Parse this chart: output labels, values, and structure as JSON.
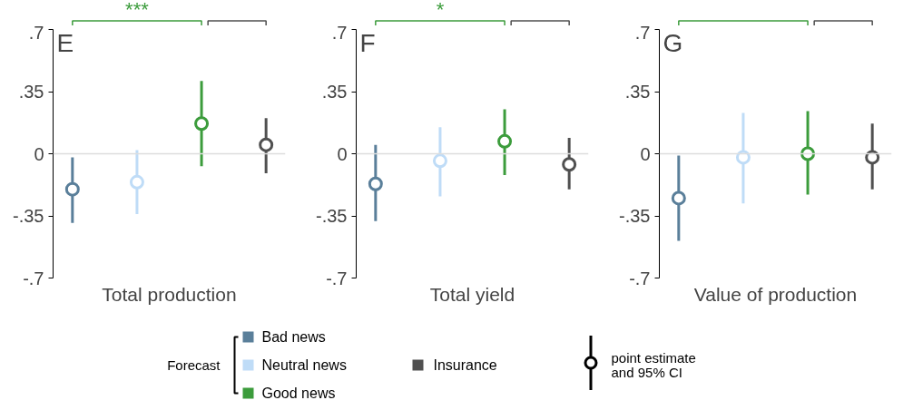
{
  "chart_data": [
    {
      "type": "scatter",
      "title": "E",
      "xlabel": "Total production",
      "categories": [
        null,
        null,
        null,
        null
      ],
      "marker": "circle",
      "legend": "bottom",
      "legend_title": "Forecast",
      "ylim": [
        -0.7,
        0.7
      ],
      "yticks": [
        {
          "value": -0.7,
          "label": "-.7"
        },
        {
          "value": -0.35,
          "label": "-.35"
        },
        0,
        {
          "value": 0.35,
          "label": ".35"
        },
        {
          "value": 0.7,
          "label": ".7"
        }
      ],
      "ref_lines": [
        {
          "axis": "y",
          "value": 0,
          "color": "#dddddd"
        }
      ],
      "annotations": [
        "***",
        "point estimate\nand 95% CI"
      ],
      "series": [
        {
          "name": "Bad news",
          "color": "#5a7f9a",
          "values": [
            -0.2,
            null,
            null,
            null
          ],
          "errors": [
            [
              -0.39,
              -0.02
            ],
            null,
            null,
            null
          ]
        },
        {
          "name": "Neutral news",
          "color": "#bfdcf7",
          "values": [
            null,
            -0.16,
            null,
            null
          ],
          "errors": [
            null,
            [
              -0.34,
              0.02
            ],
            null,
            null
          ]
        },
        {
          "name": "Good news",
          "color": "#3c9c3c",
          "values": [
            null,
            null,
            0.17,
            null
          ],
          "errors": [
            null,
            null,
            [
              -0.07,
              0.41
            ],
            null
          ]
        },
        {
          "name": "Insurance",
          "color": "#505050",
          "values": [
            null,
            null,
            null,
            0.05
          ],
          "errors": [
            null,
            null,
            null,
            [
              -0.11,
              0.2
            ]
          ]
        }
      ]
    },
    {
      "type": "scatter",
      "title": "F",
      "xlabel": "Total yield",
      "categories": [
        null,
        null,
        null,
        null
      ],
      "marker": "circle",
      "ylim": [
        -0.7,
        0.7
      ],
      "yticks": [
        {
          "value": -0.7,
          "label": "-.7"
        },
        {
          "value": -0.35,
          "label": "-.35"
        },
        0,
        {
          "value": 0.35,
          "label": ".35"
        },
        {
          "value": 0.7,
          "label": ".7"
        }
      ],
      "ref_lines": [
        {
          "axis": "y",
          "value": 0,
          "color": "#dddddd"
        }
      ],
      "annotations": [
        "*"
      ],
      "series": [
        {
          "color": "#5a7f9a",
          "values": [
            -0.17,
            null,
            null,
            null
          ],
          "errors": [
            [
              -0.38,
              0.05
            ],
            null,
            null,
            null
          ]
        },
        {
          "color": "#bfdcf7",
          "values": [
            null,
            -0.04,
            null,
            null
          ],
          "errors": [
            null,
            [
              -0.24,
              0.15
            ],
            null,
            null
          ]
        },
        {
          "color": "#3c9c3c",
          "values": [
            null,
            null,
            0.07,
            null
          ],
          "errors": [
            null,
            null,
            [
              -0.12,
              0.25
            ],
            null
          ]
        },
        {
          "color": "#505050",
          "values": [
            null,
            null,
            null,
            -0.06
          ],
          "errors": [
            null,
            null,
            null,
            [
              -0.2,
              0.09
            ]
          ]
        }
      ]
    },
    {
      "type": "scatter",
      "title": "G",
      "xlabel": "Value of production",
      "categories": [
        null,
        null,
        null,
        null
      ],
      "marker": "circle",
      "ylim": [
        -0.7,
        0.7
      ],
      "yticks": [
        {
          "value": -0.7,
          "label": "-.7"
        },
        {
          "value": -0.35,
          "label": "-.35"
        },
        0,
        {
          "value": 0.35,
          "label": ".35"
        },
        {
          "value": 0.7,
          "label": ".7"
        }
      ],
      "ref_lines": [
        {
          "axis": "y",
          "value": 0,
          "color": "#dddddd"
        }
      ],
      "series": [
        {
          "color": "#5a7f9a",
          "values": [
            -0.25,
            null,
            null,
            null
          ],
          "errors": [
            [
              -0.49,
              -0.01
            ],
            null,
            null,
            null
          ]
        },
        {
          "color": "#bfdcf7",
          "values": [
            null,
            -0.02,
            null,
            null
          ],
          "errors": [
            null,
            [
              -0.28,
              0.23
            ],
            null,
            null
          ]
        },
        {
          "color": "#3c9c3c",
          "values": [
            null,
            null,
            0.0,
            null
          ],
          "errors": [
            null,
            null,
            [
              -0.23,
              0.24
            ],
            null
          ]
        },
        {
          "color": "#505050",
          "values": [
            null,
            null,
            null,
            -0.02
          ],
          "errors": [
            null,
            null,
            null,
            [
              -0.2,
              0.17
            ]
          ]
        }
      ]
    }
  ]
}
